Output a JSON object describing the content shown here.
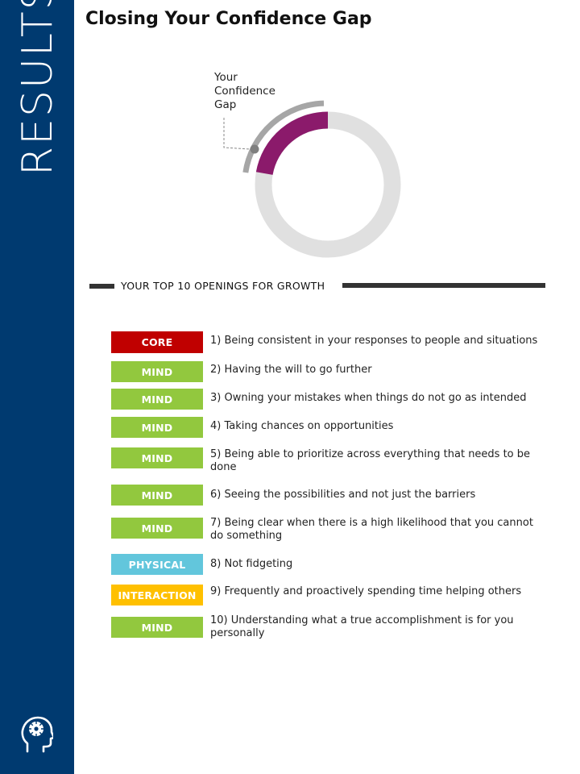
{
  "sidebar": {
    "title": "RESULTS",
    "background": "#003a70",
    "icon": "head-gear-icon"
  },
  "page": {
    "title": "Closing Your Confidence Gap"
  },
  "gap_chart": {
    "label_lines": [
      "Your",
      "Confidence",
      "Gap"
    ],
    "gap_color": "#8b1a6b",
    "track_color": "#e0e0e0",
    "outer_arc_color": "#a6a6a6"
  },
  "section": {
    "heading": "YOUR TOP 10 OPENINGS FOR GROWTH"
  },
  "category_colors": {
    "CORE": "#c00000",
    "MIND": "#92c83e",
    "PHYSICAL": "#62c6dc",
    "INTERACTION": "#ffc000"
  },
  "openings": [
    {
      "category": "CORE",
      "text": "1) Being consistent in your responses to people and situations"
    },
    {
      "category": "MIND",
      "text": "2) Having the will to go further"
    },
    {
      "category": "MIND",
      "text": "3) Owning your mistakes when things do not go as intended"
    },
    {
      "category": "MIND",
      "text": "4) Taking chances on opportunities"
    },
    {
      "category": "MIND",
      "text": "5) Being able to prioritize across everything that needs to be done"
    },
    {
      "category": "MIND",
      "text": "6) Seeing the possibilities and not just the barriers"
    },
    {
      "category": "MIND",
      "text": "7) Being clear when there is a high likelihood that you cannot do something"
    },
    {
      "category": "PHYSICAL",
      "text": "8) Not fidgeting"
    },
    {
      "category": "INTERACTION",
      "text": "9) Frequently and proactively spending time helping others"
    },
    {
      "category": "MIND",
      "text": "10) Understanding what a true accomplishment is for you personally"
    }
  ]
}
